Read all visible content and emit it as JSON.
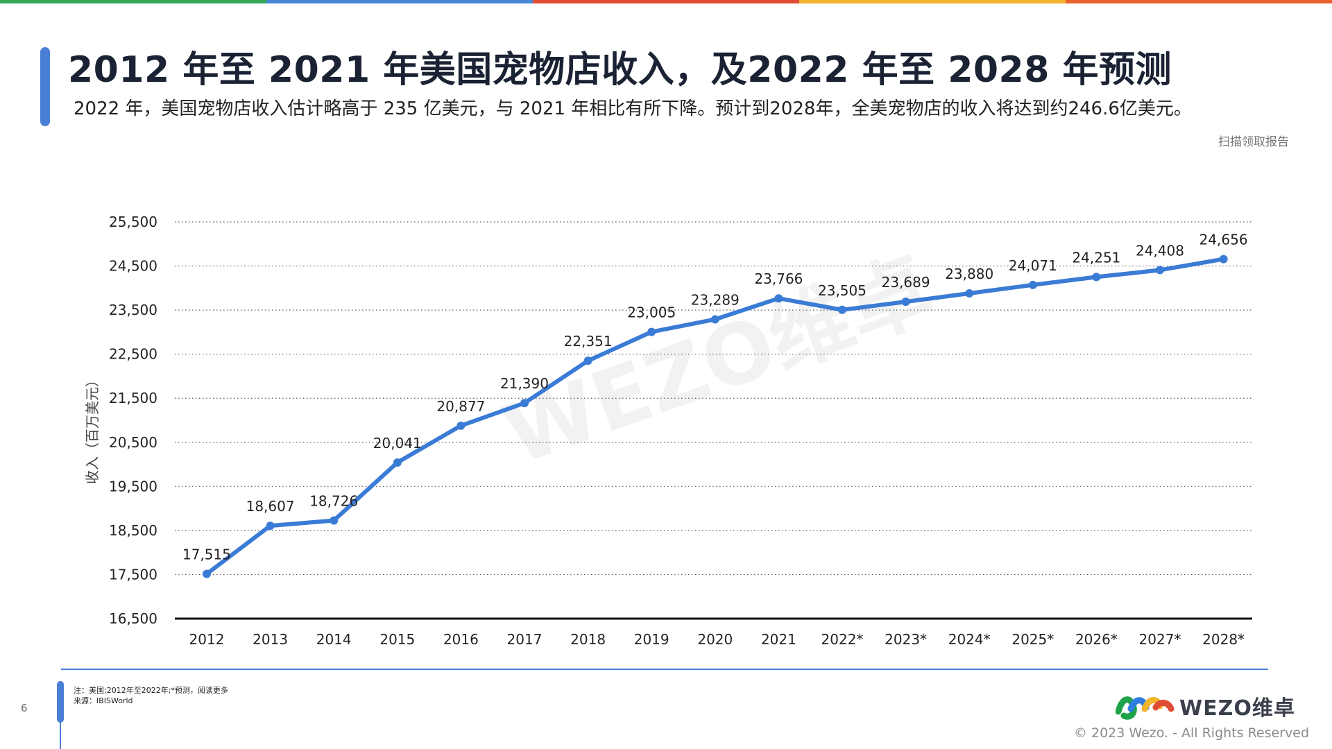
{
  "header": {
    "title": "2012 年至 2021 年美国宠物店收入，及2022 年至 2028 年预测",
    "subtitle": "2022 年，美国宠物店收入估计略高于 235 亿美元，与 2021 年相比有所下降。预计到2028年，全美宠物店的收入将达到约246.6亿美元。",
    "scan_label": "扫描领取报告"
  },
  "watermark": "WEZO维卓",
  "colors": {
    "accent": "#4a7fd6",
    "line": "#3a7bd5",
    "topbar": [
      "#34a853",
      "#4a86d8",
      "#e04b35",
      "#f3b32c",
      "#e8602c"
    ]
  },
  "chart_data": {
    "type": "line",
    "categories": [
      "2012",
      "2013",
      "2014",
      "2015",
      "2016",
      "2017",
      "2018",
      "2019",
      "2020",
      "2021",
      "2022*",
      "2023*",
      "2024*",
      "2025*",
      "2026*",
      "2027*",
      "2028*"
    ],
    "series": [
      {
        "values": [
          17515,
          18607,
          18726,
          20041,
          20877,
          21390,
          22351,
          23005,
          23289,
          23766,
          23505,
          23689,
          23880,
          24071,
          24251,
          24408,
          24656
        ]
      }
    ],
    "value_labels": [
      "17,515",
      "18,607",
      "18,726",
      "20,041",
      "20,877",
      "21,390",
      "22,351",
      "23,005",
      "23,289",
      "23,766",
      "23,505",
      "23,689",
      "23,880",
      "24,071",
      "24,251",
      "24,408",
      "24,656"
    ],
    "yticks": [
      16500,
      17500,
      18500,
      19500,
      20500,
      21500,
      22500,
      23500,
      24500,
      25500
    ],
    "ytick_labels": [
      "16,500",
      "17,500",
      "18,500",
      "19,500",
      "20,500",
      "21,500",
      "22,500",
      "23,500",
      "24,500",
      "25,500"
    ],
    "ylim": [
      16500,
      25500
    ],
    "ylabel": "收入（百万美元）",
    "xlabel": "",
    "grid": true,
    "grid_style": "dotted"
  },
  "footer": {
    "page_number": "6",
    "note": "注：美国;2012年至2022年;*预测，阅读更多",
    "source": "来源：IBISWorld",
    "logo_text": "WEZO维卓",
    "copyright": "© 2023 Wezo. - All Rights Reserved"
  }
}
